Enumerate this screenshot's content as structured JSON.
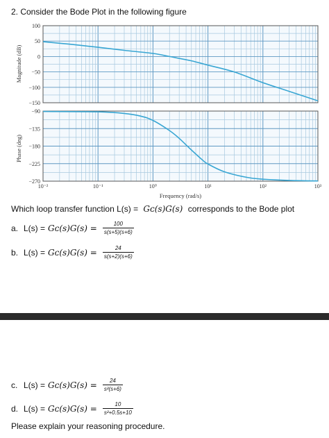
{
  "question": {
    "title": "2.   Consider the Bode Plot in the following figure"
  },
  "colors": {
    "curve": "#38a6d3",
    "grid_minor": "#a8c9df",
    "grid_major": "#5e98c2",
    "divider": "#2b2b2b"
  },
  "chart_data": [
    {
      "type": "line",
      "panel": "magnitude",
      "ylabel": "Magnitude (dB)",
      "ylim": [
        -150,
        100
      ],
      "yticks": [
        "100",
        "50",
        "0",
        "−50",
        "−100",
        "−150"
      ],
      "x_scale": "log",
      "xlim": [
        0.01,
        1000
      ],
      "grid": true,
      "series": [
        {
          "x": [
            0.01,
            0.03,
            0.1,
            0.3,
            1,
            2,
            5,
            10,
            30,
            100,
            300,
            1000
          ],
          "y": [
            48,
            40,
            30,
            20,
            10,
            0,
            -14,
            -28,
            -50,
            -85,
            -113,
            -144
          ]
        }
      ]
    },
    {
      "type": "line",
      "panel": "phase",
      "ylabel": "Phase (deg)",
      "xlabel": "Frequency (rad/s)",
      "ylim": [
        -270,
        -90
      ],
      "yticks": [
        "−90",
        "−135",
        "−180",
        "−225",
        "−270"
      ],
      "x_scale": "log",
      "xlim": [
        0.01,
        1000
      ],
      "xticks": [
        "10⁻²",
        "10⁻¹",
        "10⁰",
        "10¹",
        "10²",
        "10³"
      ],
      "grid": true,
      "series": [
        {
          "x": [
            0.01,
            0.1,
            0.3,
            0.6,
            1,
            2,
            3,
            5,
            8,
            10,
            20,
            50,
            100,
            300,
            1000
          ],
          "y": [
            -91,
            -92,
            -96,
            -103,
            -114,
            -140,
            -160,
            -190,
            -216,
            -226,
            -246,
            -260,
            -265,
            -268,
            -269.5
          ]
        }
      ]
    }
  ],
  "prompt": {
    "prefix": "Which loop transfer function L(s) = ",
    "math": "Gᴄ(s)G(s)",
    "suffix": " corresponds to the Bode plot"
  },
  "options": [
    {
      "letter": "a.",
      "lhs": "L(s) = ",
      "math": "Gᴄ(s)G(s) =",
      "num": "100",
      "den": "s(s+5)(s+6)"
    },
    {
      "letter": "b.",
      "lhs": "L(s) = ",
      "math": "Gᴄ(s)G(s) =",
      "num": "24",
      "den": "s(s+2)(s+6)"
    },
    {
      "letter": "c.",
      "lhs": "L(s) = ",
      "math": "Gᴄ(s)G(s) =",
      "num": "24",
      "den": "s²(s+6)"
    },
    {
      "letter": "d.",
      "lhs": "L(s) = ",
      "math": "Gᴄ(s)G(s) =",
      "num": "10",
      "den": "s²+0.5s+10"
    }
  ],
  "footer": "Please explain your reasoning procedure."
}
